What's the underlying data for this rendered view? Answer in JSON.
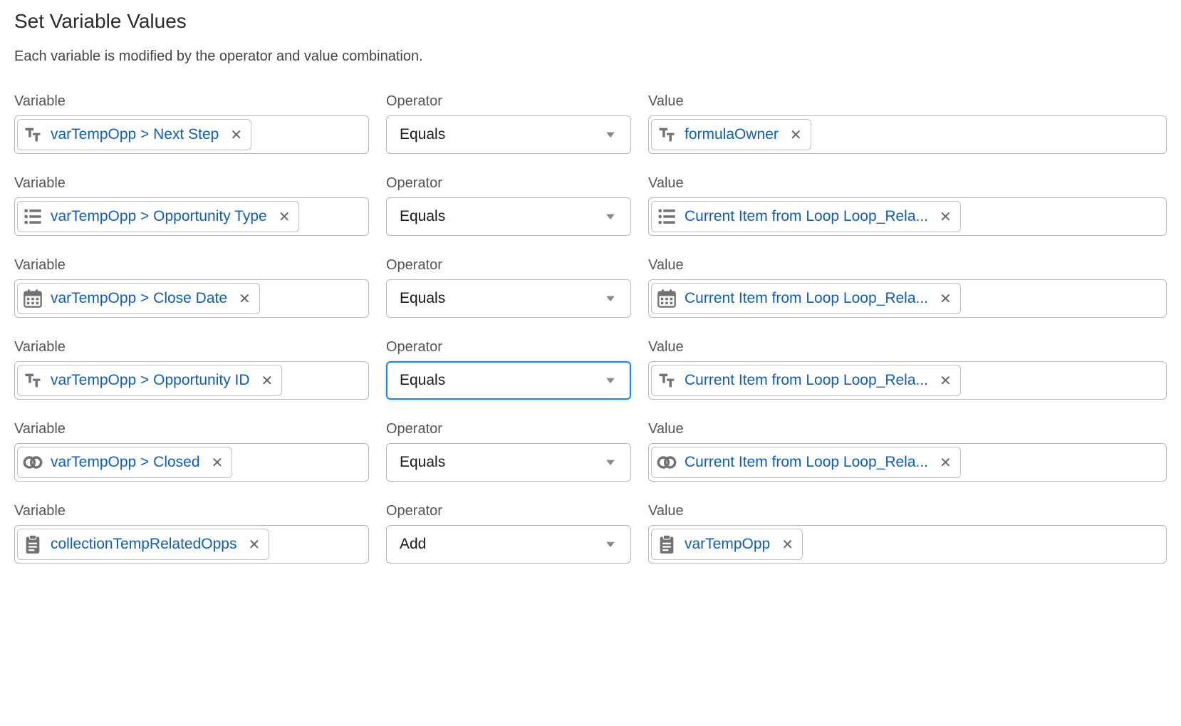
{
  "header": {
    "title": "Set Variable Values",
    "subtitle": "Each variable is modified by the operator and value combination."
  },
  "labels": {
    "variable": "Variable",
    "operator": "Operator",
    "value": "Value"
  },
  "rows": [
    {
      "variable": {
        "icon": "text",
        "text": "varTempOpp > Next Step"
      },
      "operator": {
        "text": "Equals",
        "focused": false
      },
      "value": {
        "icon": "text",
        "text": "formulaOwner"
      }
    },
    {
      "variable": {
        "icon": "list",
        "text": "varTempOpp > Opportunity Type"
      },
      "operator": {
        "text": "Equals",
        "focused": false
      },
      "value": {
        "icon": "list",
        "text": "Current Item from Loop Loop_Rela..."
      }
    },
    {
      "variable": {
        "icon": "date",
        "text": "varTempOpp > Close Date"
      },
      "operator": {
        "text": "Equals",
        "focused": false
      },
      "value": {
        "icon": "date",
        "text": "Current Item from Loop Loop_Rela..."
      }
    },
    {
      "variable": {
        "icon": "text",
        "text": "varTempOpp > Opportunity ID"
      },
      "operator": {
        "text": "Equals",
        "focused": true
      },
      "value": {
        "icon": "text",
        "text": "Current Item from Loop Loop_Rela..."
      }
    },
    {
      "variable": {
        "icon": "link",
        "text": "varTempOpp > Closed"
      },
      "operator": {
        "text": "Equals",
        "focused": false
      },
      "value": {
        "icon": "link",
        "text": "Current Item from Loop Loop_Rela..."
      }
    },
    {
      "variable": {
        "icon": "clipboard",
        "text": "collectionTempRelatedOpps"
      },
      "operator": {
        "text": "Add",
        "focused": false
      },
      "value": {
        "icon": "clipboard",
        "text": "varTempOpp"
      }
    }
  ],
  "style": {
    "link_color": "#0f5dbb",
    "icon_color": "#727272",
    "border_color": "#b9b9b9",
    "focus_color": "#1589ee",
    "text_color": "#444",
    "title_color": "#2b2b2b"
  }
}
